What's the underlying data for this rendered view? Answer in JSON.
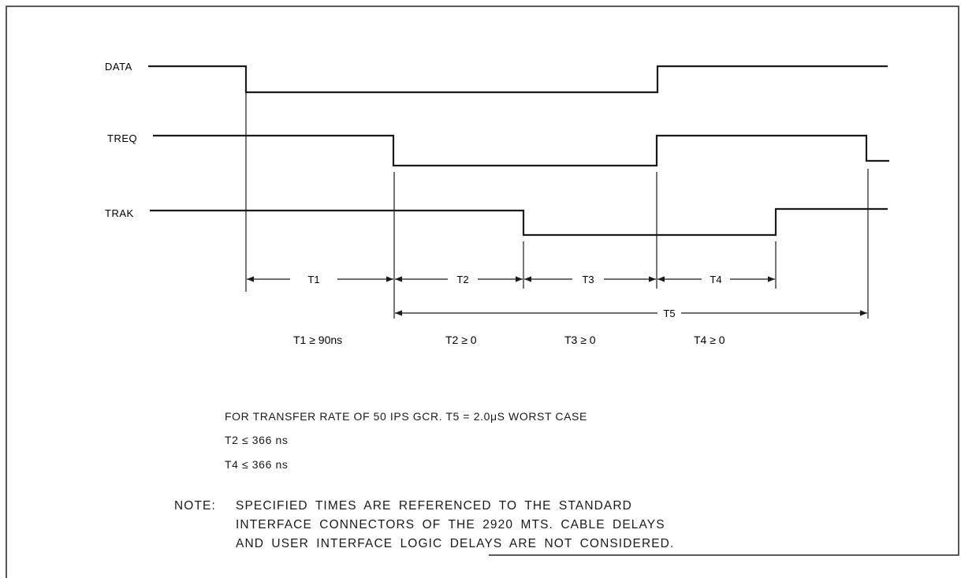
{
  "signals": [
    {
      "name": "DATA"
    },
    {
      "name": "TREQ"
    },
    {
      "name": "TRAK"
    }
  ],
  "intervals": [
    {
      "label": "T1",
      "condition": "T1 ≥ 90ns"
    },
    {
      "label": "T2",
      "condition": "T2 ≥ 0"
    },
    {
      "label": "T3",
      "condition": "T3 ≥ 0"
    },
    {
      "label": "T4",
      "condition": "T4 ≥ 0"
    },
    {
      "label": "T5"
    }
  ],
  "spec_lines": [
    "FOR TRANSFER RATE OF 50 IPS GCR. T5 = 2.0μS WORST CASE",
    "T2 ≤ 366 ns",
    "T4 ≤ 366 ns"
  ],
  "note": {
    "prefix": "NOTE:",
    "lines": [
      "SPECIFIED TIMES ARE REFERENCED TO THE STANDARD",
      "INTERFACE CONNECTORS OF THE 2920 MTS. CABLE DELAYS",
      "AND USER INTERFACE LOGIC DELAYS ARE NOT CONSIDERED."
    ]
  }
}
